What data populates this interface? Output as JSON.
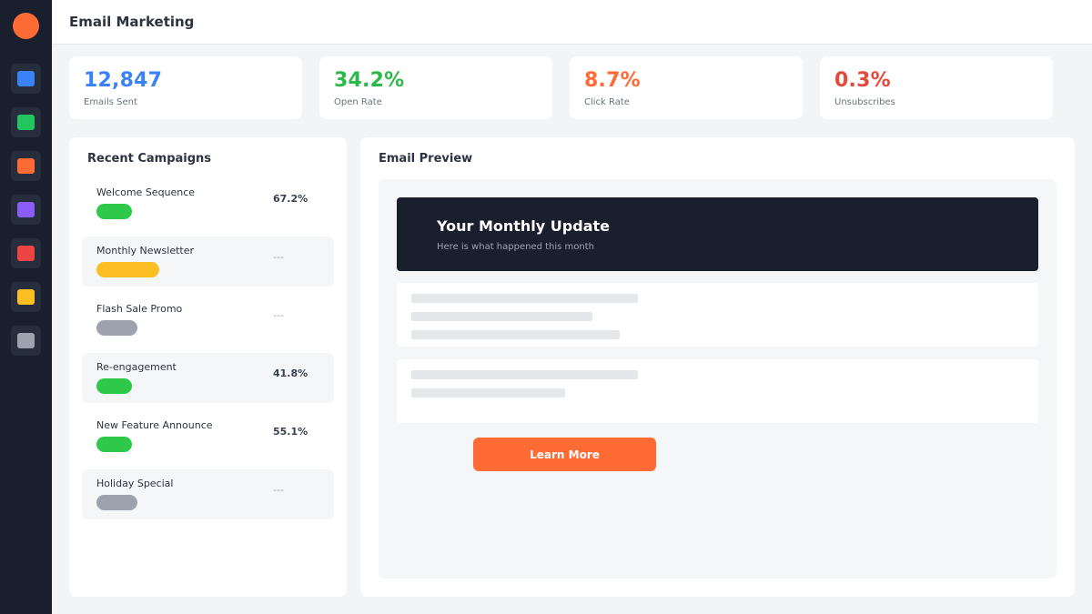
{
  "header": {
    "title": "Email Marketing"
  },
  "sidebar": {
    "items": [
      {
        "icon": "dashboard-icon",
        "color": "#3b82f6"
      },
      {
        "icon": "campaigns-icon",
        "color": "#22c55e"
      },
      {
        "icon": "email-icon",
        "color": "#ff6b35"
      },
      {
        "icon": "audience-icon",
        "color": "#8b5cf6"
      },
      {
        "icon": "reports-icon",
        "color": "#ef4444"
      },
      {
        "icon": "templates-icon",
        "color": "#fbbf24"
      },
      {
        "icon": "settings-icon",
        "color": "#9ca3af"
      }
    ]
  },
  "stats": [
    {
      "value": "12,847",
      "label": "Emails Sent",
      "color": "#3b82f6"
    },
    {
      "value": "34.2%",
      "label": "Open Rate",
      "color": "#2fb84a"
    },
    {
      "value": "8.7%",
      "label": "Click Rate",
      "color": "#ff6b35"
    },
    {
      "value": "0.3%",
      "label": "Unsubscribes",
      "color": "#e24a3b"
    }
  ],
  "campaigns": {
    "title": "Recent Campaigns",
    "items": [
      {
        "name": "Welcome Sequence",
        "rate": "67.2%",
        "status_color": "#2ec84a",
        "status": "sent"
      },
      {
        "name": "Monthly Newsletter",
        "rate": "---",
        "status_color": "#fbbf24",
        "status": "scheduled"
      },
      {
        "name": "Flash Sale Promo",
        "rate": "---",
        "status_color": "#9ca3af",
        "status": "draft"
      },
      {
        "name": "Re-engagement",
        "rate": "41.8%",
        "status_color": "#2ec84a",
        "status": "sent"
      },
      {
        "name": "New Feature Announce",
        "rate": "55.1%",
        "status_color": "#2ec84a",
        "status": "sent"
      },
      {
        "name": "Holiday Special",
        "rate": "---",
        "status_color": "#9ca3af",
        "status": "draft"
      }
    ]
  },
  "preview": {
    "title": "Email Preview",
    "email_heading": "Your Monthly Update",
    "email_subheading": "Here is what happened this month",
    "cta_label": "Learn More"
  }
}
